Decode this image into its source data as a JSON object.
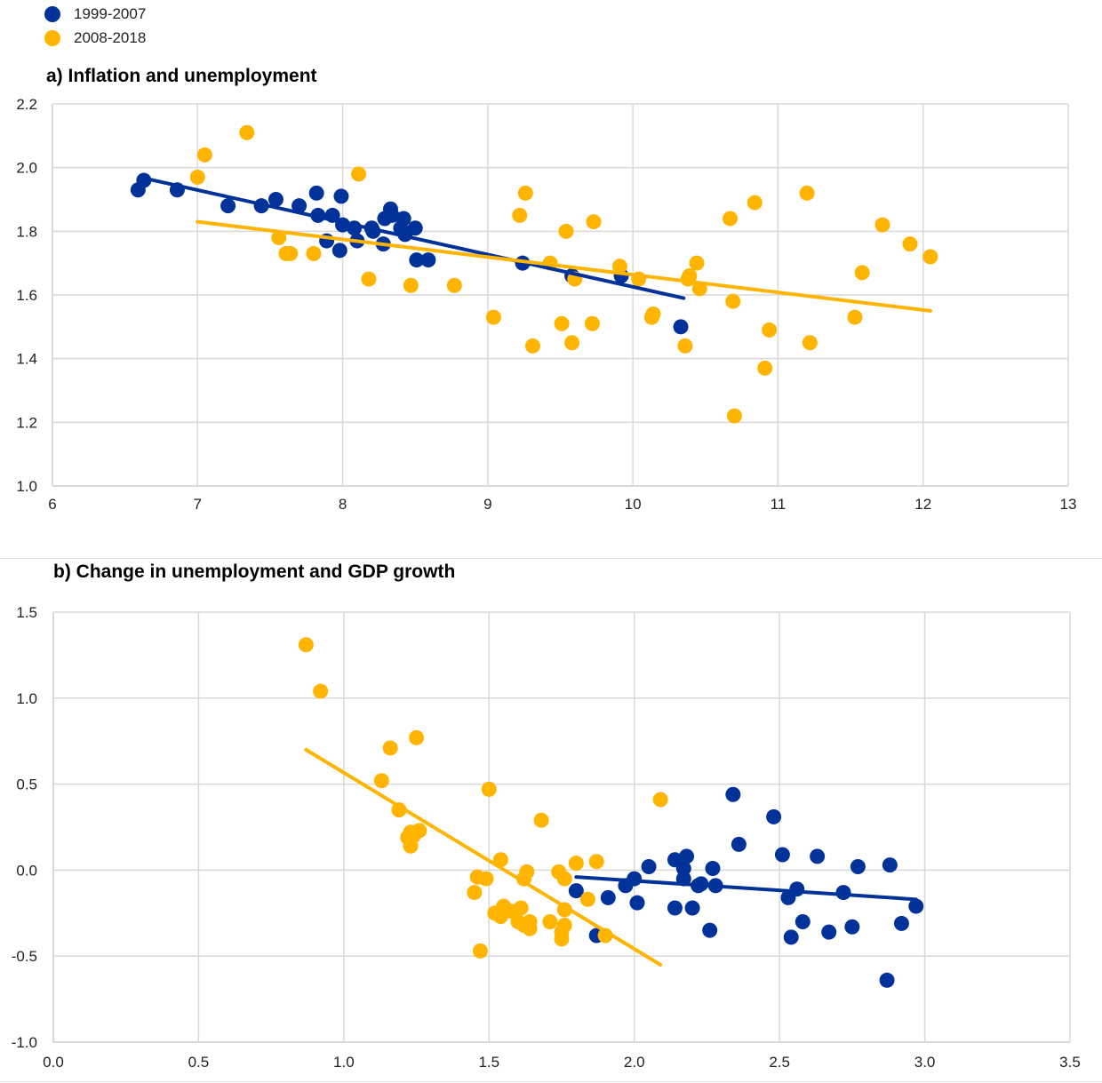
{
  "legend": [
    {
      "label": "1999-2007",
      "color": "#003299"
    },
    {
      "label": "2008-2018",
      "color": "#FFB400"
    }
  ],
  "chart_data": [
    {
      "type": "scatter",
      "title": "a) Inflation and unemployment",
      "xlabel": "",
      "ylabel": "",
      "xlim": [
        6,
        13
      ],
      "ylim": [
        1.0,
        2.2
      ],
      "xticks": [
        "6",
        "7",
        "8",
        "9",
        "10",
        "11",
        "12",
        "13"
      ],
      "yticks": [
        "1.0",
        "1.2",
        "1.4",
        "1.6",
        "1.8",
        "2.0",
        "2.2"
      ],
      "grid": true,
      "series": [
        {
          "name": "1999-2007",
          "color": "#003299",
          "points": [
            [
              6.59,
              1.93
            ],
            [
              6.63,
              1.96
            ],
            [
              6.86,
              1.93
            ],
            [
              7.21,
              1.88
            ],
            [
              7.44,
              1.88
            ],
            [
              7.54,
              1.9
            ],
            [
              7.7,
              1.88
            ],
            [
              7.82,
              1.92
            ],
            [
              7.83,
              1.85
            ],
            [
              7.89,
              1.77
            ],
            [
              7.93,
              1.85
            ],
            [
              7.98,
              1.74
            ],
            [
              7.99,
              1.91
            ],
            [
              8.0,
              1.82
            ],
            [
              8.08,
              1.81
            ],
            [
              8.1,
              1.77
            ],
            [
              8.2,
              1.81
            ],
            [
              8.21,
              1.8
            ],
            [
              8.28,
              1.76
            ],
            [
              8.29,
              1.84
            ],
            [
              8.33,
              1.87
            ],
            [
              8.34,
              1.85
            ],
            [
              8.4,
              1.81
            ],
            [
              8.42,
              1.84
            ],
            [
              8.43,
              1.79
            ],
            [
              8.5,
              1.81
            ],
            [
              8.51,
              1.71
            ],
            [
              8.59,
              1.71
            ],
            [
              9.24,
              1.7
            ],
            [
              9.58,
              1.66
            ],
            [
              9.92,
              1.66
            ],
            [
              10.33,
              1.5
            ]
          ],
          "trend": [
            [
              6.6,
              1.97
            ],
            [
              10.35,
              1.59
            ]
          ]
        },
        {
          "name": "2008-2018",
          "color": "#FFB400",
          "points": [
            [
              7.0,
              1.97
            ],
            [
              7.05,
              2.04
            ],
            [
              7.34,
              2.11
            ],
            [
              7.56,
              1.78
            ],
            [
              7.61,
              1.73
            ],
            [
              7.64,
              1.73
            ],
            [
              7.8,
              1.73
            ],
            [
              8.11,
              1.98
            ],
            [
              8.18,
              1.65
            ],
            [
              8.47,
              1.63
            ],
            [
              8.77,
              1.63
            ],
            [
              9.04,
              1.53
            ],
            [
              9.22,
              1.85
            ],
            [
              9.26,
              1.92
            ],
            [
              9.31,
              1.44
            ],
            [
              9.43,
              1.7
            ],
            [
              9.51,
              1.51
            ],
            [
              9.54,
              1.8
            ],
            [
              9.58,
              1.45
            ],
            [
              9.6,
              1.65
            ],
            [
              9.72,
              1.51
            ],
            [
              9.73,
              1.83
            ],
            [
              9.91,
              1.69
            ],
            [
              10.04,
              1.65
            ],
            [
              10.13,
              1.53
            ],
            [
              10.14,
              1.54
            ],
            [
              10.36,
              1.44
            ],
            [
              10.38,
              1.65
            ],
            [
              10.39,
              1.66
            ],
            [
              10.44,
              1.7
            ],
            [
              10.46,
              1.62
            ],
            [
              10.67,
              1.84
            ],
            [
              10.69,
              1.58
            ],
            [
              10.7,
              1.22
            ],
            [
              10.84,
              1.89
            ],
            [
              10.91,
              1.37
            ],
            [
              10.94,
              1.49
            ],
            [
              11.2,
              1.92
            ],
            [
              11.22,
              1.45
            ],
            [
              11.53,
              1.53
            ],
            [
              11.58,
              1.67
            ],
            [
              11.72,
              1.82
            ],
            [
              11.91,
              1.76
            ],
            [
              12.05,
              1.72
            ]
          ],
          "trend": [
            [
              7.0,
              1.83
            ],
            [
              12.05,
              1.55
            ]
          ]
        }
      ]
    },
    {
      "type": "scatter",
      "title": "b) Change in unemployment and GDP growth",
      "xlabel": "",
      "ylabel": "",
      "xlim": [
        0.0,
        3.5
      ],
      "ylim": [
        -1.0,
        1.5
      ],
      "xticks": [
        "0.0",
        "0.5",
        "1.0",
        "1.5",
        "2.0",
        "2.5",
        "3.0",
        "3.5"
      ],
      "yticks": [
        "-1.0",
        "-0.5",
        "0.0",
        "0.5",
        "1.0",
        "1.5"
      ],
      "grid": true,
      "series": [
        {
          "name": "1999-2007",
          "color": "#003299",
          "points": [
            [
              1.8,
              -0.12
            ],
            [
              1.87,
              -0.38
            ],
            [
              1.91,
              -0.16
            ],
            [
              1.97,
              -0.09
            ],
            [
              2.0,
              -0.05
            ],
            [
              2.01,
              -0.19
            ],
            [
              2.05,
              0.02
            ],
            [
              2.14,
              0.06
            ],
            [
              2.14,
              -0.22
            ],
            [
              2.17,
              0.01
            ],
            [
              2.17,
              -0.05
            ],
            [
              2.18,
              0.08
            ],
            [
              2.2,
              -0.22
            ],
            [
              2.22,
              -0.09
            ],
            [
              2.23,
              -0.08
            ],
            [
              2.26,
              -0.35
            ],
            [
              2.27,
              0.01
            ],
            [
              2.28,
              -0.09
            ],
            [
              2.34,
              0.44
            ],
            [
              2.36,
              0.15
            ],
            [
              2.48,
              0.31
            ],
            [
              2.51,
              0.09
            ],
            [
              2.53,
              -0.16
            ],
            [
              2.54,
              -0.39
            ],
            [
              2.56,
              -0.11
            ],
            [
              2.58,
              -0.3
            ],
            [
              2.63,
              0.08
            ],
            [
              2.67,
              -0.36
            ],
            [
              2.72,
              -0.13
            ],
            [
              2.75,
              -0.33
            ],
            [
              2.77,
              0.02
            ],
            [
              2.87,
              -0.64
            ],
            [
              2.88,
              0.03
            ],
            [
              2.92,
              -0.31
            ],
            [
              2.97,
              -0.21
            ]
          ],
          "trend": [
            [
              1.8,
              -0.04
            ],
            [
              2.97,
              -0.17
            ]
          ]
        },
        {
          "name": "2008-2018",
          "color": "#FFB400",
          "points": [
            [
              0.87,
              1.31
            ],
            [
              0.92,
              1.04
            ],
            [
              1.13,
              0.52
            ],
            [
              1.16,
              0.71
            ],
            [
              1.19,
              0.35
            ],
            [
              1.22,
              0.19
            ],
            [
              1.23,
              0.22
            ],
            [
              1.23,
              0.14
            ],
            [
              1.24,
              0.2
            ],
            [
              1.25,
              0.77
            ],
            [
              1.26,
              0.23
            ],
            [
              1.45,
              -0.13
            ],
            [
              1.46,
              -0.04
            ],
            [
              1.47,
              -0.47
            ],
            [
              1.49,
              -0.05
            ],
            [
              1.5,
              0.47
            ],
            [
              1.52,
              -0.25
            ],
            [
              1.54,
              0.06
            ],
            [
              1.54,
              -0.27
            ],
            [
              1.55,
              -0.21
            ],
            [
              1.58,
              -0.24
            ],
            [
              1.6,
              -0.3
            ],
            [
              1.61,
              -0.22
            ],
            [
              1.62,
              -0.32
            ],
            [
              1.62,
              -0.05
            ],
            [
              1.63,
              -0.01
            ],
            [
              1.64,
              -0.34
            ],
            [
              1.64,
              -0.3
            ],
            [
              1.68,
              0.29
            ],
            [
              1.71,
              -0.3
            ],
            [
              1.74,
              -0.01
            ],
            [
              1.75,
              -0.4
            ],
            [
              1.75,
              -0.36
            ],
            [
              1.76,
              -0.05
            ],
            [
              1.76,
              -0.23
            ],
            [
              1.76,
              -0.32
            ],
            [
              1.8,
              0.04
            ],
            [
              1.84,
              -0.17
            ],
            [
              1.87,
              0.05
            ],
            [
              1.9,
              -0.38
            ],
            [
              2.09,
              0.41
            ]
          ],
          "trend": [
            [
              0.87,
              0.7
            ],
            [
              2.09,
              -0.55
            ]
          ]
        }
      ]
    }
  ]
}
